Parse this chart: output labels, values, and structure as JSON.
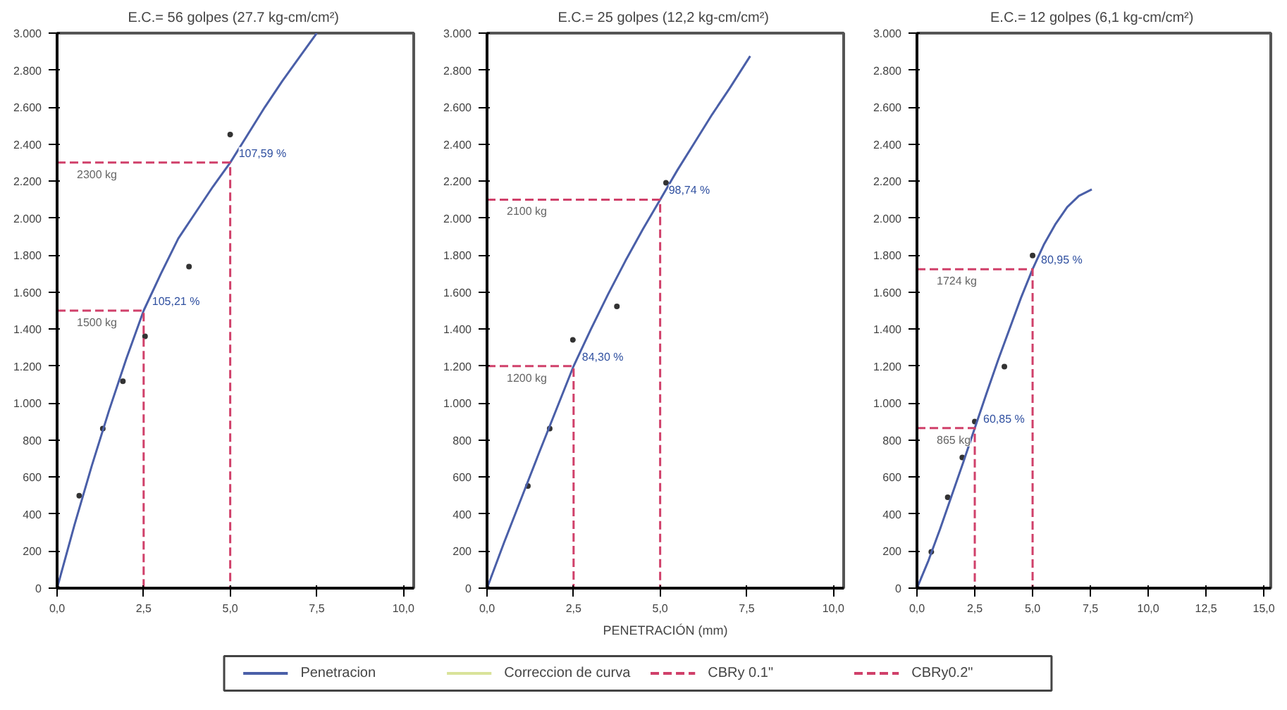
{
  "chart_data": [
    {
      "type": "scatter",
      "title": "E.C.= 56 golpes  (27.7 kg-cm/cm²)",
      "xlim": [
        0,
        10.3
      ],
      "ylim": [
        0,
        3000
      ],
      "xticks": [
        {
          "value": 0,
          "label": "0,0"
        },
        {
          "value": 2.5,
          "label": "2,5"
        },
        {
          "value": 5,
          "label": "5,0"
        },
        {
          "value": 7.5,
          "label": "7,5"
        },
        {
          "value": 10,
          "label": "10,0"
        }
      ],
      "yticks": [
        0,
        200,
        400,
        600,
        800,
        {
          "value": 1000,
          "label": "1.000"
        },
        {
          "value": 1200,
          "label": "1.200"
        },
        {
          "value": 1400,
          "label": "1.400"
        },
        {
          "value": 1600,
          "label": "1.600"
        },
        {
          "value": 1800,
          "label": "1.800"
        },
        {
          "value": 2000,
          "label": "2.000"
        },
        {
          "value": 2200,
          "label": "2.200"
        },
        {
          "value": 2400,
          "label": "2.400"
        },
        {
          "value": 2600,
          "label": "2.600"
        },
        {
          "value": 2800,
          "label": "2.800"
        },
        {
          "value": 3000,
          "label": "3.000"
        }
      ],
      "grid": false,
      "legend": false,
      "series": [
        {
          "marker": "circle",
          "color": "#333333",
          "x": [
            0,
            0.64,
            1.32,
            1.9,
            2.54,
            3.81,
            5.0
          ],
          "values": [
            0,
            500,
            862,
            1118,
            1361,
            1738,
            2452
          ]
        },
        {
          "type": "line",
          "line_style": "solid",
          "color": "#4a5fa8",
          "x": [
            0,
            0.5,
            1,
            1.5,
            2,
            2.5,
            3,
            3.5,
            4,
            4.5,
            5,
            5.5,
            6,
            6.5,
            7,
            7.5
          ],
          "values": [
            0,
            340,
            660,
            960,
            1240,
            1500,
            1700,
            1890,
            2030,
            2170,
            2300,
            2450,
            2600,
            2740,
            2870,
            3000
          ]
        },
        {
          "type": "line",
          "line_style": "dashed",
          "color": "#d0406a",
          "x": [
            0,
            2.5,
            2.5
          ],
          "values": [
            1500,
            1500,
            0
          ]
        },
        {
          "type": "line",
          "line_style": "dashed",
          "color": "#d0406a",
          "x": [
            0,
            5,
            5
          ],
          "values": [
            2300,
            2300,
            0
          ]
        }
      ],
      "annotations": [
        {
          "text": "2300 kg",
          "x": 0,
          "y": 2300
        },
        {
          "text": "1500 kg",
          "x": 0,
          "y": 1500
        },
        {
          "text": "107,59 %",
          "x": 5,
          "y": 2300
        },
        {
          "text": "105,21 %",
          "x": 2.5,
          "y": 1500
        }
      ]
    },
    {
      "type": "scatter",
      "title": "E.C.= 25 golpes  (12,2 kg-cm/cm²)",
      "xlabel": "PENETRACIÓN (mm)",
      "xlim": [
        0,
        10.3
      ],
      "ylim": [
        0,
        3000
      ],
      "xticks": [
        {
          "value": 0,
          "label": "0,0"
        },
        {
          "value": 2.5,
          "label": "2,5"
        },
        {
          "value": 5,
          "label": "5,0"
        },
        {
          "value": 7.5,
          "label": "7,5"
        },
        {
          "value": 10,
          "label": "10,0"
        }
      ],
      "yticks": [
        0,
        200,
        400,
        600,
        800,
        {
          "value": 1000,
          "label": "1.000"
        },
        {
          "value": 1200,
          "label": "1.200"
        },
        {
          "value": 1400,
          "label": "1.400"
        },
        {
          "value": 1600,
          "label": "1.600"
        },
        {
          "value": 1800,
          "label": "1.800"
        },
        {
          "value": 2000,
          "label": "2.000"
        },
        {
          "value": 2200,
          "label": "2.200"
        },
        {
          "value": 2400,
          "label": "2.400"
        },
        {
          "value": 2600,
          "label": "2.600"
        },
        {
          "value": 2800,
          "label": "2.800"
        },
        {
          "value": 3000,
          "label": "3.000"
        }
      ],
      "grid": false,
      "legend": "bottom",
      "series": [
        {
          "marker": "circle",
          "color": "#333333",
          "x": [
            0,
            1.18,
            1.81,
            2.48,
            3.75,
            5.17
          ],
          "values": [
            0,
            552,
            862,
            1342,
            1523,
            2191
          ]
        },
        {
          "type": "line",
          "line_style": "solid",
          "name": "Penetracion",
          "color": "#4a5fa8",
          "x": [
            0,
            0.5,
            1,
            1.5,
            2,
            2.5,
            3,
            3.5,
            4,
            4.5,
            5,
            5.5,
            6,
            6.5,
            7,
            7.6
          ],
          "values": [
            0,
            250,
            490,
            730,
            965,
            1200,
            1400,
            1590,
            1770,
            1940,
            2100,
            2260,
            2410,
            2560,
            2700,
            2876
          ]
        },
        {
          "type": "line",
          "line_style": "solid",
          "name": "Correccion de curva",
          "color": "#d9e39a"
        },
        {
          "type": "line",
          "line_style": "dashed",
          "name": "CBRy 0.1\"",
          "color": "#d0406a",
          "x": [
            0,
            2.5,
            2.5
          ],
          "values": [
            1200,
            1200,
            0
          ]
        },
        {
          "type": "line",
          "line_style": "dashed",
          "name": "CBRy0.2\"",
          "color": "#d0406a",
          "x": [
            0,
            5,
            5
          ],
          "values": [
            2100,
            2100,
            0
          ]
        }
      ],
      "annotations": [
        {
          "text": "2100 kg",
          "x": 0,
          "y": 2100
        },
        {
          "text": "1200 kg",
          "x": 0,
          "y": 1200
        },
        {
          "text": "98,74 %",
          "x": 5,
          "y": 2100
        },
        {
          "text": "84,30 %",
          "x": 2.5,
          "y": 1200
        }
      ]
    },
    {
      "type": "scatter",
      "title": "E.C.= 12 golpes  (6,1 kg-cm/cm²)",
      "xlim": [
        0,
        15.3
      ],
      "ylim": [
        0,
        3000
      ],
      "xticks": [
        {
          "value": 0,
          "label": "0,0"
        },
        {
          "value": 2.5,
          "label": "2,5"
        },
        {
          "value": 5,
          "label": "5,0"
        },
        {
          "value": 7.5,
          "label": "7,5"
        },
        {
          "value": 10,
          "label": "10,0"
        },
        {
          "value": 12.5,
          "label": "12,5"
        },
        {
          "value": 15,
          "label": "15,0"
        }
      ],
      "yticks": [
        0,
        200,
        400,
        600,
        800,
        {
          "value": 1000,
          "label": "1.000"
        },
        {
          "value": 1200,
          "label": "1.200"
        },
        {
          "value": 1400,
          "label": "1.400"
        },
        {
          "value": 1600,
          "label": "1.600"
        },
        {
          "value": 1800,
          "label": "1.800"
        },
        {
          "value": 2000,
          "label": "2.000"
        },
        {
          "value": 2200,
          "label": "2.200"
        },
        {
          "value": 2400,
          "label": "2.400"
        },
        {
          "value": 2600,
          "label": "2.600"
        },
        {
          "value": 2800,
          "label": "2.800"
        },
        {
          "value": 3000,
          "label": "3.000"
        }
      ],
      "grid": false,
      "legend": false,
      "series": [
        {
          "marker": "circle",
          "color": "#333333",
          "x": [
            0,
            0.62,
            1.33,
            1.96,
            2.5,
            3.78,
            5.0
          ],
          "values": [
            0,
            196,
            491,
            706,
            900,
            1197,
            1798
          ]
        },
        {
          "type": "line",
          "line_style": "solid",
          "color": "#4a5fa8",
          "x": [
            0,
            0.5,
            1,
            1.5,
            2,
            2.5,
            3,
            3.5,
            4,
            4.5,
            5,
            5.5,
            6,
            6.5,
            7,
            7.56
          ],
          "values": [
            0,
            150,
            320,
            500,
            680,
            865,
            1050,
            1230,
            1400,
            1570,
            1724,
            1860,
            1970,
            2060,
            2120,
            2155
          ]
        },
        {
          "type": "line",
          "line_style": "dashed",
          "color": "#d0406a",
          "x": [
            0,
            2.5,
            2.5
          ],
          "values": [
            865,
            865,
            0
          ]
        },
        {
          "type": "line",
          "line_style": "dashed",
          "color": "#d0406a",
          "x": [
            0,
            5,
            5
          ],
          "values": [
            1724,
            1724,
            0
          ]
        }
      ],
      "annotations": [
        {
          "text": "1724 kg",
          "x": 0,
          "y": 1724
        },
        {
          "text": "865 kg",
          "x": 0,
          "y": 865
        },
        {
          "text": "80,95 %",
          "x": 5,
          "y": 1724
        },
        {
          "text": "60,85 %",
          "x": 2.5,
          "y": 865
        }
      ]
    }
  ]
}
